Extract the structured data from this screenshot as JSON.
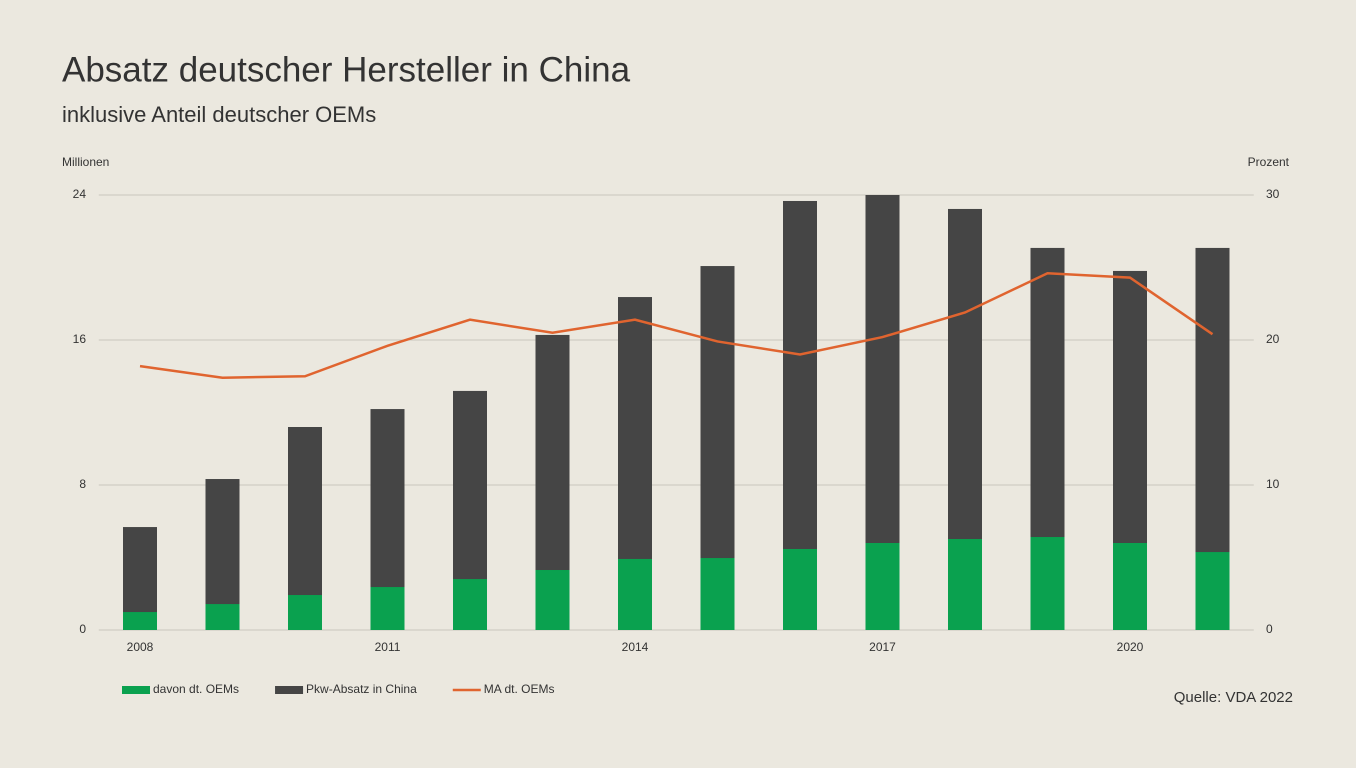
{
  "chart_data": {
    "type": "bar-line",
    "title": "Absatz deutscher Hersteller in China",
    "subtitle": "inklusive Anteil deutscher OEMs",
    "y_label": "Millionen",
    "y2_label": "Prozent",
    "source": "Quelle: VDA 2022",
    "categories": [
      "2008",
      null,
      null,
      "2011",
      null,
      null,
      "2014",
      null,
      null,
      "2017",
      null,
      null,
      "2020",
      null
    ],
    "series": [
      {
        "name": "davon dt. OEMs",
        "color": "#0aa14f",
        "values": [
          0.99,
          1.43,
          1.93,
          2.37,
          2.81,
          3.31,
          3.92,
          3.97,
          4.47,
          4.8,
          5.02,
          5.13,
          4.8,
          4.3
        ]
      },
      {
        "name": "Pkw-Absatz in China",
        "color": "#454545",
        "values": [
          5.68,
          8.33,
          11.2,
          12.19,
          13.19,
          16.28,
          18.37,
          20.08,
          23.67,
          24.0,
          23.23,
          21.08,
          19.81,
          21.08
        ]
      },
      {
        "name": "MA dt. OEMs",
        "color": "#e0642f",
        "axis": "y2",
        "values": [
          18.2,
          17.4,
          17.5,
          19.6,
          21.4,
          20.5,
          21.4,
          19.9,
          19.0,
          20.2,
          21.9,
          24.6,
          24.3,
          20.4
        ]
      }
    ],
    "ylim": [
      0,
      24
    ],
    "yticks": [
      0,
      8,
      16,
      24
    ],
    "y2lim": [
      0,
      30
    ],
    "y2ticks": [
      0,
      10,
      20,
      30
    ],
    "grid": true
  }
}
